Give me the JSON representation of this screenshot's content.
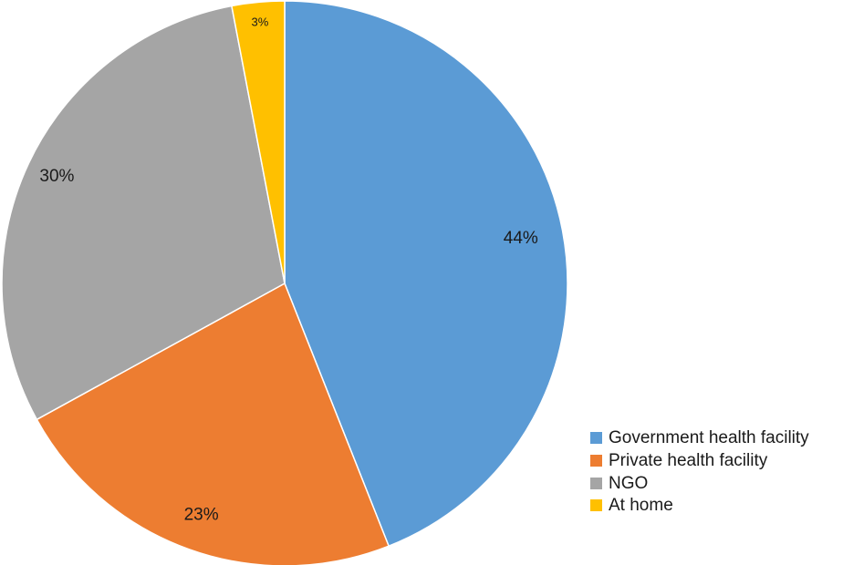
{
  "chart_data": {
    "type": "pie",
    "title": "",
    "start_angle_deg": 0,
    "direction": "clockwise",
    "slices": [
      {
        "name": "Government health facility",
        "value": 44,
        "label": "44%",
        "color": "#5B9BD5"
      },
      {
        "name": "Private health facility",
        "value": 23,
        "label": "23%",
        "color": "#ED7D31"
      },
      {
        "name": "NGO",
        "value": 30,
        "label": "30%",
        "color": "#A5A5A5"
      },
      {
        "name": "At home",
        "value": 3,
        "label": "3%",
        "color": "#FFC000"
      }
    ],
    "legend": {
      "placement": "bottom-right",
      "entries": [
        "Government health facility",
        "Private health facility",
        "NGO",
        "At home"
      ]
    }
  }
}
